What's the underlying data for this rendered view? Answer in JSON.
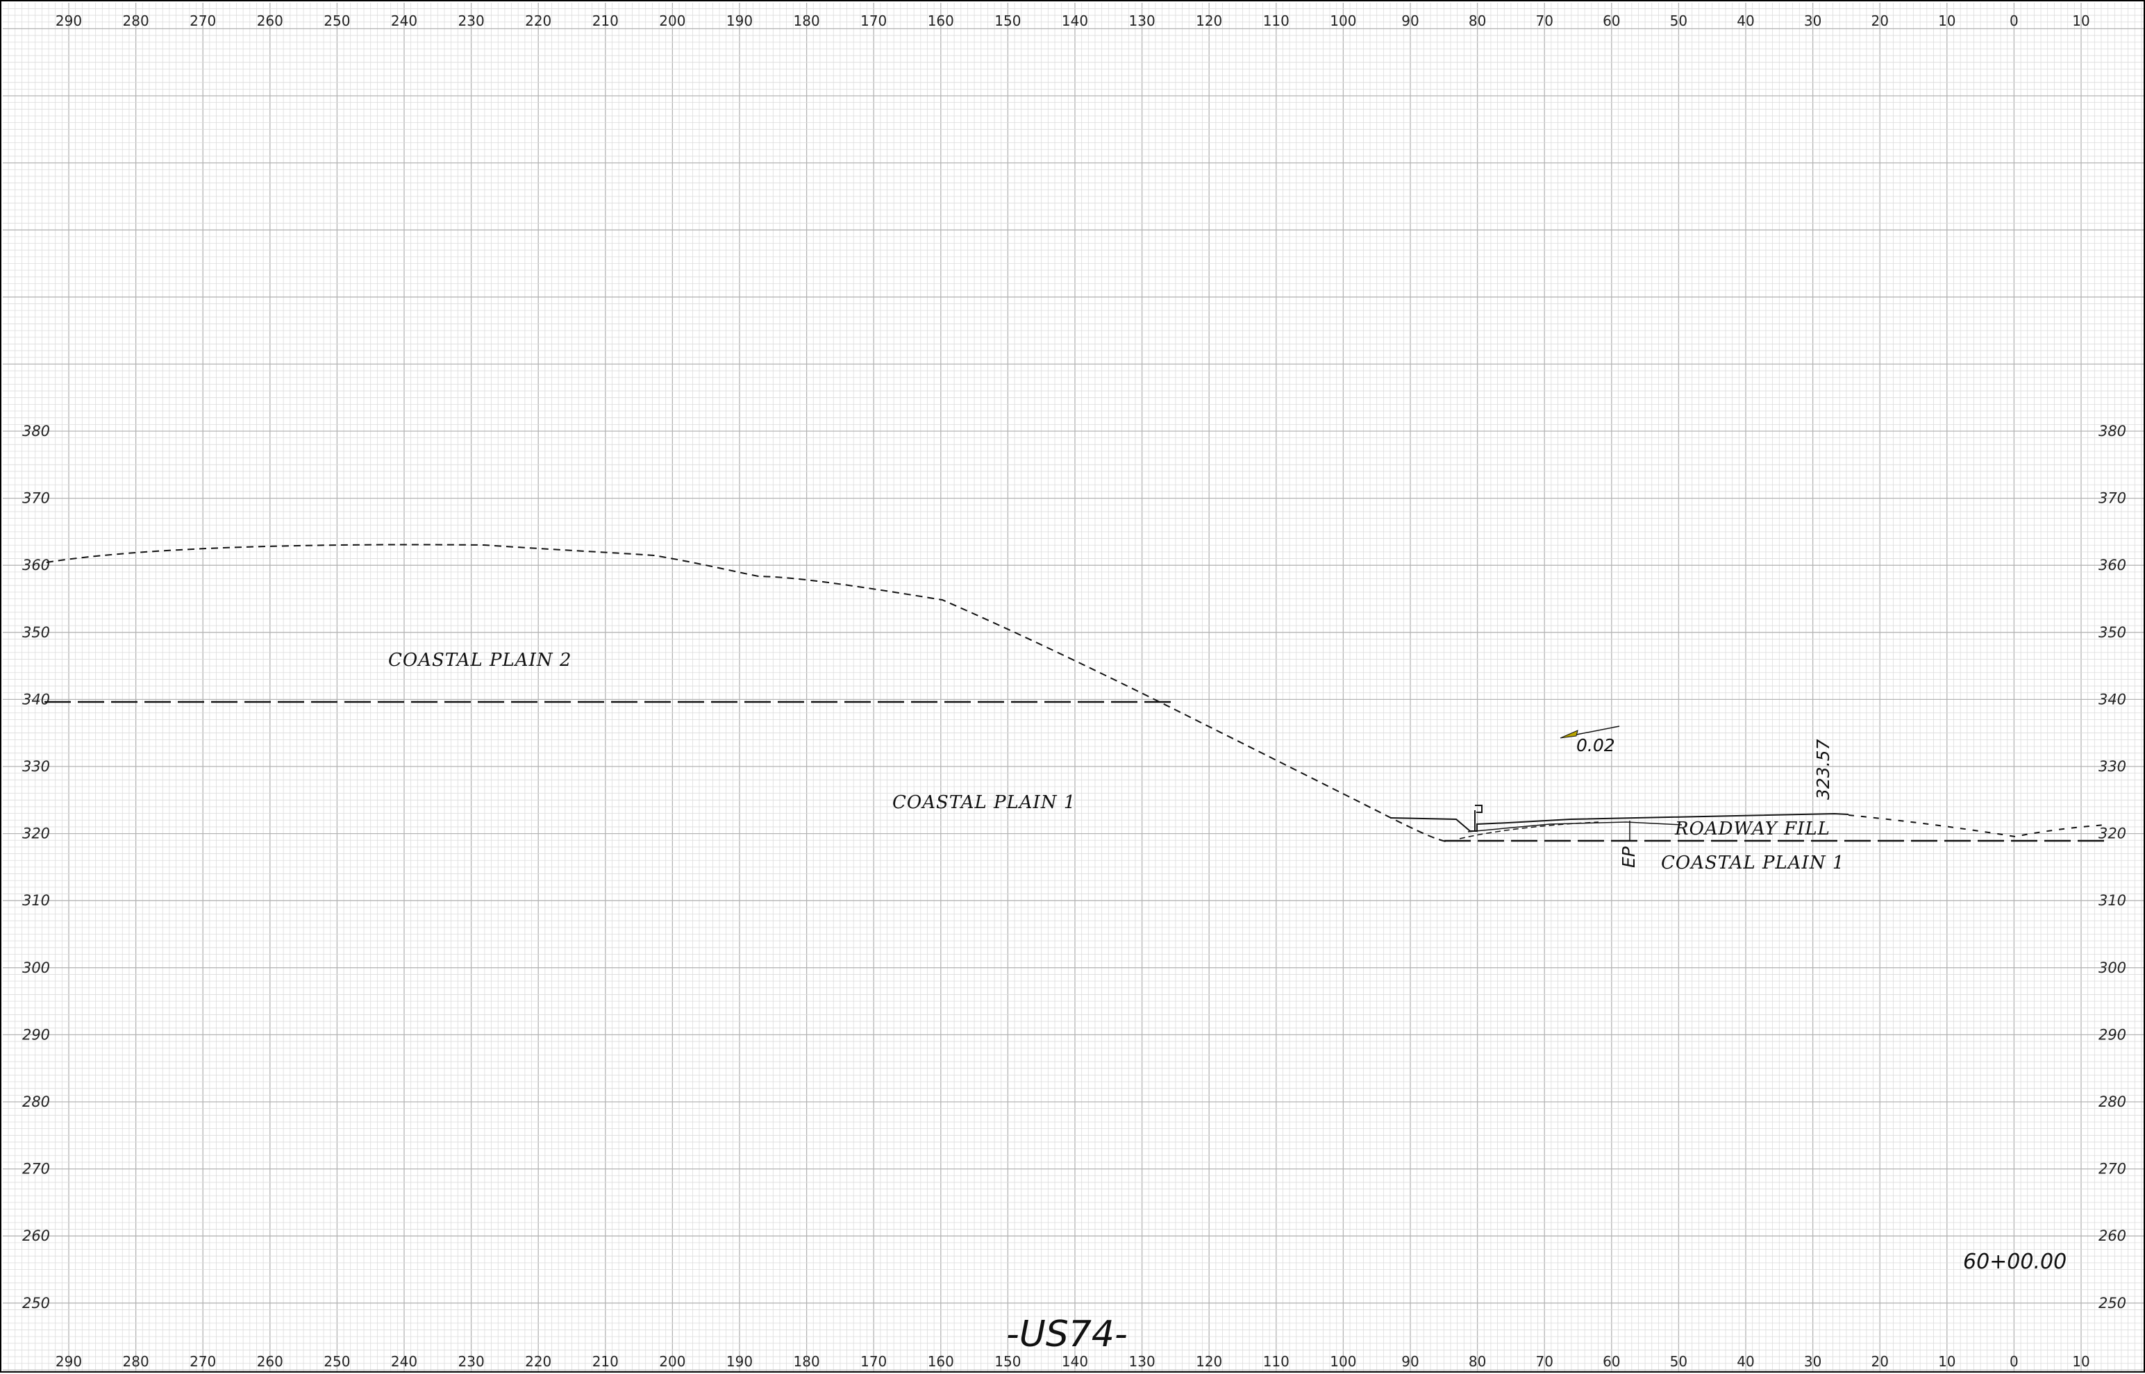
{
  "sheet": {
    "title": "-US74-",
    "station": "60+00.00"
  },
  "axes": {
    "x_ticks": [
      "290",
      "280",
      "270",
      "260",
      "250",
      "240",
      "230",
      "220",
      "210",
      "200",
      "190",
      "180",
      "170",
      "160",
      "150",
      "140",
      "130",
      "120",
      "110",
      "100",
      "90",
      "80",
      "70",
      "60",
      "50",
      "40",
      "30",
      "20",
      "10",
      "0",
      "10"
    ],
    "y_ticks": [
      "380",
      "370",
      "360",
      "350",
      "340",
      "330",
      "320",
      "310",
      "300",
      "290",
      "280",
      "270",
      "260",
      "250"
    ]
  },
  "labels": {
    "coastal_plain_2": "COASTAL PLAIN 2",
    "coastal_plain_1_upper": "COASTAL PLAIN 1",
    "roadway_fill": "ROADWAY FILL",
    "coastal_plain_1_lower": "COASTAL PLAIN 1",
    "slope": "0.02",
    "elevation_top": "323.57",
    "ep": "EP"
  },
  "colors": {
    "grid_minor": "#dcdcdc",
    "grid_major": "#b4b4b4",
    "line": "#111111",
    "slope_arrow": "#b8a400"
  }
}
